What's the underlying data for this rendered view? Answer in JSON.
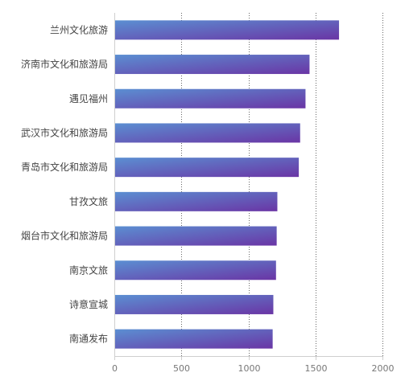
{
  "chart_data": {
    "type": "bar",
    "orientation": "horizontal",
    "categories": [
      "兰州文化旅游",
      "济南市文化和旅游局",
      "遇见福州",
      "武汉市文化和旅游局",
      "青岛市文化和旅游局",
      "甘孜文旅",
      "烟台市文化和旅游局",
      "南京文旅",
      "诗意宣城",
      "南通发布"
    ],
    "values": [
      1670,
      1450,
      1420,
      1380,
      1370,
      1210,
      1205,
      1200,
      1180,
      1175
    ],
    "xlim": [
      0,
      2000
    ],
    "xticks": [
      0,
      500,
      1000,
      1500,
      2000
    ],
    "grid": true,
    "legend": "none",
    "bar_gradient": [
      "#5b8fd2",
      "#6a35a5"
    ]
  }
}
